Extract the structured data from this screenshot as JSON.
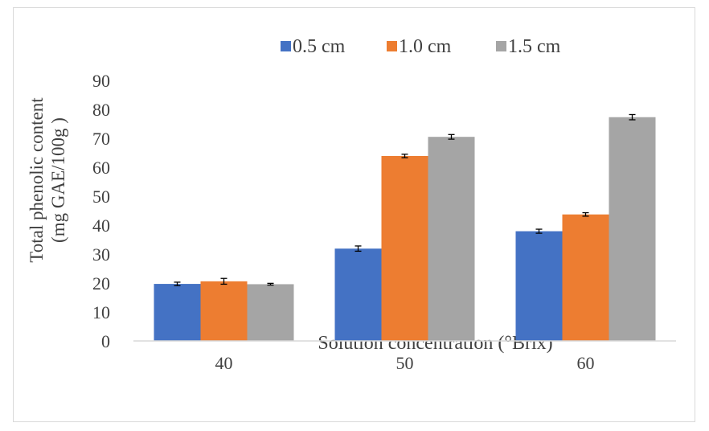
{
  "chart_data": {
    "type": "bar",
    "title": "",
    "ylabel_lines": [
      "Total phenolic content",
      "(mg GAE/100g )"
    ],
    "xlabel": "Solution concentration (°Brix)",
    "categories": [
      "40",
      "50",
      "60"
    ],
    "ylim": [
      0,
      90
    ],
    "yticks": [
      0,
      10,
      20,
      30,
      40,
      50,
      60,
      70,
      80,
      90
    ],
    "grid": false,
    "legend_position": "top",
    "series": [
      {
        "name": "0.5 cm",
        "color": "#4472C4",
        "values": [
          19.7,
          31.9,
          37.9
        ],
        "errors": [
          0.6,
          0.9,
          0.7
        ]
      },
      {
        "name": "1.0 cm",
        "color": "#ED7D31",
        "values": [
          20.6,
          63.9,
          43.7
        ],
        "errors": [
          1.0,
          0.6,
          0.6
        ]
      },
      {
        "name": "1.5 cm",
        "color": "#A5A5A5",
        "values": [
          19.6,
          70.5,
          77.3
        ],
        "errors": [
          0.3,
          0.8,
          0.9
        ]
      }
    ]
  }
}
